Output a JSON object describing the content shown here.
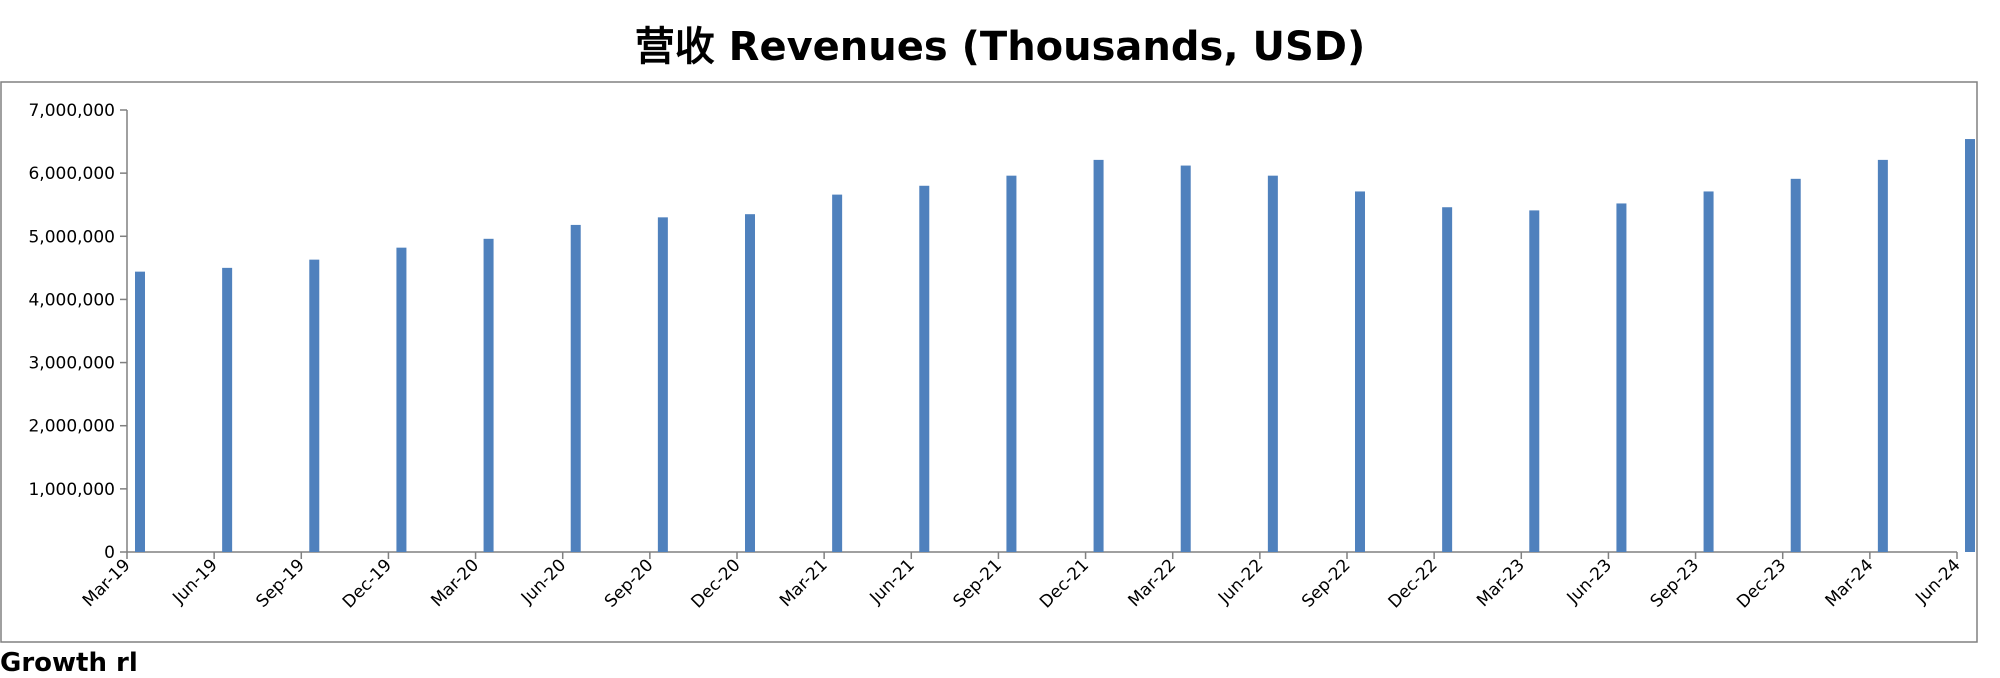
{
  "chart_data": {
    "type": "bar",
    "title": "营收 Revenues (Thousands, USD)",
    "xlabel": "",
    "ylabel": "",
    "ylim": [
      0,
      7000000
    ],
    "yticks": [
      0,
      1000000,
      2000000,
      3000000,
      4000000,
      5000000,
      6000000,
      7000000
    ],
    "ytick_labels": [
      "0",
      "1,000,000",
      "2,000,000",
      "3,000,000",
      "4,000,000",
      "5,000,000",
      "6,000,000",
      "7,000,000"
    ],
    "categories": [
      "Mar-19",
      "Jun-19",
      "Sep-19",
      "Dec-19",
      "Mar-20",
      "Jun-20",
      "Sep-20",
      "Dec-20",
      "Mar-21",
      "Jun-21",
      "Sep-21",
      "Dec-21",
      "Mar-22",
      "Jun-22",
      "Sep-22",
      "Dec-22",
      "Mar-23",
      "Jun-23",
      "Sep-23",
      "Dec-23",
      "Mar-24",
      "Jun-24"
    ],
    "series": [
      {
        "values": [
          4440000,
          4500000,
          4630000,
          4820000,
          4960000,
          5180000,
          5300000,
          5350000,
          5660000,
          5800000,
          5960000,
          6210000,
          6120000,
          5960000,
          5710000,
          5460000,
          5410000,
          5520000,
          5710000,
          5910000,
          6210000,
          6540000
        ],
        "color": "#4F81BD"
      }
    ],
    "grid": false,
    "legend": "none"
  },
  "footer": {
    "text": "Growth rl"
  }
}
